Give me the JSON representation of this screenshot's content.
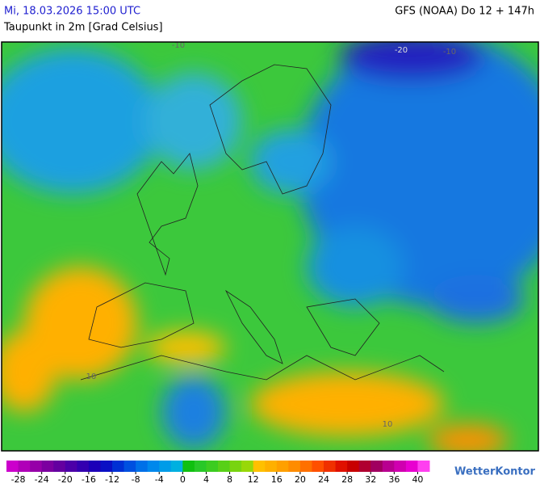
{
  "header": {
    "left": "Mi, 18.03.2026 15:00 UTC",
    "right": "GFS (NOAA) Do 12 + 147h",
    "subtitle": "Taupunkt in 2m [Grad Celsius]"
  },
  "map": {
    "labels": [
      "-20",
      "-10",
      "-10",
      "10",
      "10"
    ]
  },
  "legend": {
    "range": [
      -30,
      42
    ],
    "ticks": [
      -28,
      -24,
      -20,
      -16,
      -12,
      -8,
      -4,
      0,
      4,
      8,
      12,
      16,
      20,
      24,
      28,
      32,
      36,
      40
    ],
    "colors": [
      "#cc00cc",
      "#b000b8",
      "#9600a8",
      "#7c00a0",
      "#6400a0",
      "#4c00a8",
      "#3400b0",
      "#1c00b8",
      "#0a10c4",
      "#0030d4",
      "#0050e0",
      "#0070e8",
      "#0088ec",
      "#009ce8",
      "#00b0e0",
      "#10c010",
      "#28c828",
      "#3ccc20",
      "#58d018",
      "#78d410",
      "#98d808",
      "#ffc000",
      "#ffb000",
      "#ffa000",
      "#ff8c00",
      "#ff7000",
      "#ff5000",
      "#f03000",
      "#e01000",
      "#c80000",
      "#b00030",
      "#a00060",
      "#b80090",
      "#d000b0",
      "#e800d0",
      "#ff40f0"
    ],
    "logo": "WetterKontor"
  }
}
